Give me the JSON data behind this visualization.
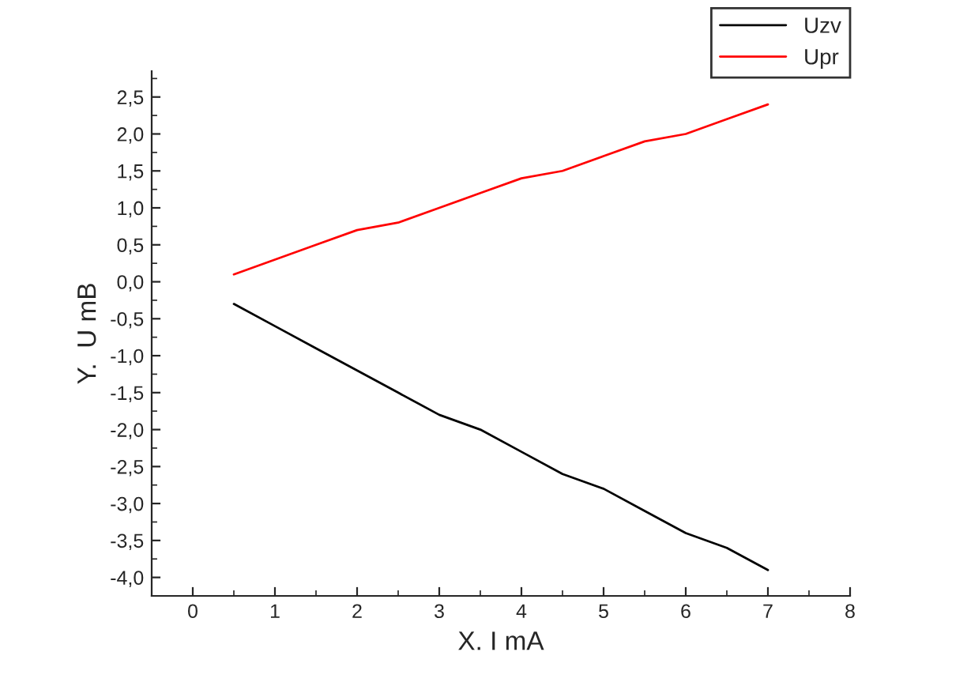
{
  "chart_data": {
    "type": "line",
    "xlabel": "X. I mA",
    "ylabel": "Y.  U mB",
    "x": [
      0.5,
      1,
      1.5,
      2,
      2.5,
      3,
      3.5,
      4,
      4.5,
      5,
      5.5,
      6,
      6.5,
      7
    ],
    "series": [
      {
        "name": "Uzv",
        "color": "#000000",
        "values": [
          -0.3,
          -0.6,
          -0.9,
          -1.2,
          -1.5,
          -1.8,
          -2.0,
          -2.3,
          -2.6,
          -2.8,
          -3.1,
          -3.4,
          -3.6,
          -3.9
        ]
      },
      {
        "name": "Upr",
        "color": "#ff0000",
        "values": [
          0.1,
          0.3,
          0.5,
          0.7,
          0.8,
          1.0,
          1.2,
          1.4,
          1.5,
          1.7,
          1.9,
          2.0,
          2.2,
          2.4
        ]
      }
    ],
    "xlim": [
      -0.5,
      8
    ],
    "xticks": [
      0,
      1,
      2,
      3,
      4,
      5,
      6,
      7,
      8
    ],
    "ylim": [
      -4.25,
      2.85
    ],
    "yticks": [
      {
        "value": -4.0,
        "label": "-4,0"
      },
      {
        "value": -3.5,
        "label": "-3,5"
      },
      {
        "value": -3.0,
        "label": "-3,0"
      },
      {
        "value": -2.5,
        "label": "-2,5"
      },
      {
        "value": -2.0,
        "label": "-2,0"
      },
      {
        "value": -1.5,
        "label": "-1,5"
      },
      {
        "value": -1.0,
        "label": "-1,0"
      },
      {
        "value": -0.5,
        "label": "-0,5"
      },
      {
        "value": 0.0,
        "label": "0,0"
      },
      {
        "value": 0.5,
        "label": "0,5"
      },
      {
        "value": 1.0,
        "label": "1,0"
      },
      {
        "value": 1.5,
        "label": "1,5"
      },
      {
        "value": 2.0,
        "label": "2,0"
      },
      {
        "value": 2.5,
        "label": "2,5"
      }
    ],
    "grid": false,
    "legend": "top right",
    "marker": "none",
    "line_style": "solid"
  }
}
